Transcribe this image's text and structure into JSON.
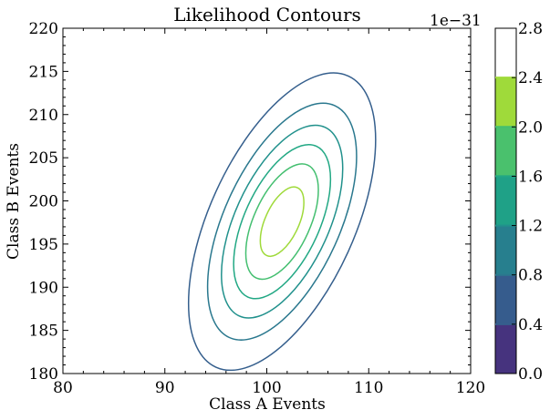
{
  "chart_data": {
    "type": "contour",
    "title": "Likelihood Contours",
    "xlabel": "Class A Events",
    "ylabel": "Class B Events",
    "xlim": [
      80,
      120
    ],
    "ylim": [
      180,
      220
    ],
    "x_ticks": [
      80,
      90,
      100,
      110,
      120
    ],
    "y_ticks": [
      180,
      185,
      190,
      195,
      200,
      205,
      210,
      215,
      220
    ],
    "center": {
      "x": 101.5,
      "y": 197.6
    },
    "levels": [
      0.4,
      0.8,
      1.2,
      1.6,
      2.0,
      2.4
    ],
    "level_colors": [
      "#414487",
      "#355f8d",
      "#2a788e",
      "#21918c",
      "#22a884",
      "#44bf70",
      "#9fda3a"
    ],
    "colorbar": {
      "range": [
        0.0,
        2.8
      ],
      "ticks": [
        "0.0",
        "0.4",
        "0.8",
        "1.2",
        "1.6",
        "2.0",
        "2.4",
        "2.8"
      ],
      "offset_label": "1e−31",
      "band_colors": [
        "#46337e",
        "#365c8d",
        "#277f8e",
        "#1fa187",
        "#4ac16d",
        "#9fda3a",
        "#ffffff"
      ]
    }
  }
}
